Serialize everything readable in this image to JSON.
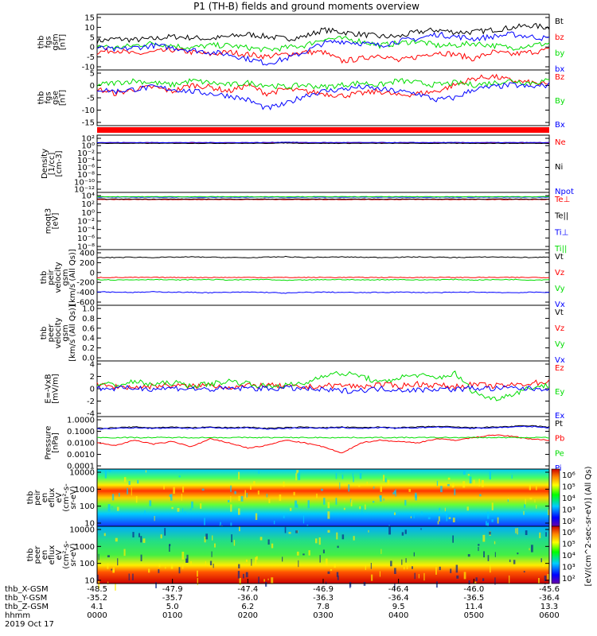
{
  "title": "P1 (TH-B) fields and ground moments overview",
  "colors": {
    "black": "#000000",
    "red": "#ff0000",
    "green": "#00dd00",
    "blue": "#0000ff"
  },
  "chart_data": [
    {
      "type": "line",
      "ylabel": [
        "thb",
        "fgs",
        "gsm",
        "[nT]"
      ],
      "yticks": [
        "15",
        "10",
        "5",
        "0",
        "-5",
        "-10"
      ],
      "ylim": [
        -10,
        15
      ],
      "series": [
        {
          "name": "Bt",
          "color": "black",
          "values": [
            3,
            4,
            3.5,
            4,
            5,
            4.5,
            4,
            5,
            6,
            5,
            4,
            5,
            8,
            7,
            6,
            5,
            5,
            7,
            8,
            7,
            7,
            8,
            9,
            10,
            9
          ]
        },
        {
          "name": "bz",
          "color": "red",
          "values": [
            -2,
            -1,
            -3,
            -2,
            -1,
            -2,
            -3,
            -2,
            -3,
            -4,
            -3,
            -2,
            -2,
            -6,
            -5,
            -3,
            -6,
            -4,
            -2,
            -3,
            -5,
            -2,
            -3,
            -2,
            -1
          ]
        },
        {
          "name": "by",
          "color": "green",
          "values": [
            1,
            0,
            1,
            2,
            1,
            0,
            1,
            1,
            0,
            -1,
            0,
            1,
            4,
            4,
            3,
            1,
            2,
            3,
            1,
            1,
            2,
            1,
            0,
            1,
            2
          ]
        },
        {
          "name": "bx",
          "color": "blue",
          "values": [
            0,
            -1,
            0,
            1,
            0,
            -1,
            -2,
            -3,
            -5,
            -7,
            -5,
            -2,
            2,
            3,
            2,
            1,
            3,
            4,
            6,
            5,
            4,
            5,
            6,
            5,
            4
          ]
        }
      ]
    },
    {
      "type": "line",
      "ylabel": [
        "thb",
        "fgs",
        "gse",
        "[nT]"
      ],
      "yticks": [
        "5",
        "0",
        "-5",
        "-10",
        "-15"
      ],
      "ylim": [
        -18,
        8
      ],
      "series": [
        {
          "name": "Bz",
          "color": "red",
          "values": [
            -1,
            -3,
            -1,
            0,
            -2,
            1,
            0,
            -2,
            1,
            -3,
            -1,
            -2,
            -3,
            -4,
            -3,
            -2,
            -4,
            -3,
            -2,
            1,
            4,
            5,
            3,
            2,
            1
          ]
        },
        {
          "name": "By",
          "color": "green",
          "values": [
            1,
            2,
            3,
            2,
            1,
            3,
            2,
            1,
            2,
            1,
            0,
            1,
            0,
            1,
            2,
            1,
            3,
            2,
            1,
            2,
            1,
            2,
            3,
            2,
            3
          ]
        },
        {
          "name": "Bx",
          "color": "blue",
          "values": [
            -1,
            -2,
            -1,
            0,
            -1,
            -2,
            -3,
            -4,
            -6,
            -10,
            -8,
            -4,
            -2,
            -1,
            0,
            -1,
            -2,
            -3,
            -6,
            -5,
            -1,
            0,
            1,
            0,
            1
          ]
        }
      ]
    },
    {
      "type": "line",
      "log": true,
      "ylabel": [
        "Density",
        "[1/cc]",
        "[cm-3]"
      ],
      "yticks": [
        "10²",
        "10⁰",
        "10⁻²",
        "10⁻⁴",
        "10⁻⁶",
        "10⁻⁸",
        "10⁻¹⁰",
        "10⁻¹²"
      ],
      "ylim": [
        -12,
        2
      ],
      "series": [
        {
          "name": "Ne",
          "color": "red",
          "values": [
            0.1,
            0.1,
            0.1,
            0.1,
            0.1,
            0.1,
            0.1,
            0.1,
            0.1,
            0.1,
            0.2,
            0.1,
            0.1,
            0.1,
            0.1,
            0.1,
            0.1,
            0.1,
            0.1,
            0.1,
            0.1,
            0.1,
            0.1,
            0.1,
            0.1
          ]
        },
        {
          "name": "Ni",
          "color": "black",
          "values": [
            0,
            0,
            0,
            0,
            0,
            0,
            0,
            0,
            0,
            0,
            0.1,
            0,
            0,
            0,
            0,
            0,
            0,
            0,
            0,
            0,
            0,
            0,
            0,
            0,
            0
          ]
        },
        {
          "name": "Npot",
          "color": "blue",
          "values": [
            0.2,
            0.2,
            0.2,
            0.2,
            0.2,
            0.2,
            0.2,
            0.2,
            0.2,
            0.2,
            0.3,
            0.2,
            0.2,
            0.2,
            0.2,
            0.2,
            0.2,
            0.2,
            0.2,
            0.2,
            0.2,
            0.2,
            0.2,
            0.2,
            0.2
          ]
        }
      ]
    },
    {
      "type": "line",
      "log": true,
      "ylabel": [
        "moqt3",
        "[eV]"
      ],
      "yticks": [
        "10⁴",
        "10²",
        "10⁰",
        "10⁻²",
        "10⁻⁴",
        "10⁻⁶",
        "10⁻⁸"
      ],
      "ylim": [
        -8,
        4
      ],
      "series": [
        {
          "name": "Te⊥",
          "color": "red",
          "values": [
            2.5,
            2.5,
            2.5,
            2.5,
            2.5,
            2.5,
            2.5,
            2.5,
            2.5,
            2.5,
            2.5,
            2.5,
            2.5,
            2.5,
            2.5,
            2.5,
            2.5,
            2.5,
            2.5,
            2.5,
            2.5,
            2.5,
            2.5,
            2.5,
            2.5
          ]
        },
        {
          "name": "Te||",
          "color": "black",
          "values": [
            2.6,
            2.6,
            2.6,
            2.6,
            2.6,
            2.6,
            2.6,
            2.6,
            2.6,
            2.6,
            2.6,
            2.6,
            2.6,
            2.6,
            2.6,
            2.6,
            2.6,
            2.6,
            2.6,
            2.6,
            2.6,
            2.6,
            2.6,
            2.6,
            2.6
          ]
        },
        {
          "name": "Ti⊥",
          "color": "blue",
          "values": [
            3.0,
            3.0,
            3.0,
            3.0,
            3.0,
            3.0,
            3.0,
            3.0,
            3.0,
            3.0,
            3.0,
            3.0,
            3.0,
            3.0,
            3.0,
            3.0,
            3.0,
            3.0,
            3.0,
            3.0,
            3.0,
            3.0,
            3.0,
            3.0,
            3.0
          ]
        },
        {
          "name": "Ti||",
          "color": "green",
          "values": [
            3.1,
            3.1,
            3.1,
            3.1,
            3.1,
            3.1,
            3.1,
            3.1,
            3.1,
            3.1,
            3.1,
            3.1,
            3.1,
            3.1,
            3.1,
            3.1,
            3.1,
            3.1,
            3.1,
            3.1,
            3.1,
            3.1,
            3.1,
            3.1,
            3.1
          ]
        }
      ]
    },
    {
      "type": "line",
      "ylabel": [
        "thb",
        "peir",
        "velocity",
        "gsm",
        "[km/s (All Qs)]"
      ],
      "yticks": [
        "400",
        "200",
        "0",
        "-200",
        "-400",
        "-600"
      ],
      "ylim": [
        -600,
        500
      ],
      "series": [
        {
          "name": "Vt",
          "color": "black",
          "values": [
            340,
            345,
            350,
            345,
            350,
            355,
            350,
            345,
            340,
            350,
            360,
            345,
            350,
            355,
            350,
            345,
            350,
            355,
            350,
            345,
            350,
            355,
            350,
            345,
            350
          ]
        },
        {
          "name": "Vz",
          "color": "red",
          "values": [
            -50,
            -50,
            -50,
            -50,
            -50,
            -50,
            -50,
            -50,
            -50,
            -50,
            -50,
            -50,
            -50,
            -50,
            -50,
            -50,
            -50,
            -50,
            -50,
            -50,
            -50,
            -50,
            -50,
            -50,
            -50
          ]
        },
        {
          "name": "Vy",
          "color": "green",
          "values": [
            -90,
            -100,
            -95,
            -90,
            -100,
            -95,
            -90,
            -100,
            -95,
            -90,
            -110,
            -100,
            -95,
            -90,
            -100,
            -95,
            -90,
            -100,
            -95,
            -90,
            -100,
            -95,
            -90,
            -100,
            -95
          ]
        },
        {
          "name": "Vx",
          "color": "blue",
          "values": [
            -330,
            -340,
            -345,
            -335,
            -340,
            -345,
            -350,
            -345,
            -340,
            -345,
            -360,
            -345,
            -340,
            -345,
            -350,
            -345,
            -340,
            -345,
            -350,
            -345,
            -340,
            -345,
            -350,
            -345,
            -340
          ]
        }
      ]
    },
    {
      "type": "line",
      "ylabel": [
        "thb",
        "peer",
        "velocity",
        "gsm",
        "[km/s (All Qs)]"
      ],
      "yticks": [
        "1.0",
        "0.8",
        "0.6",
        "0.4",
        "0.2",
        "0.0"
      ],
      "ylim": [
        0,
        1
      ],
      "series": [
        {
          "name": "Vt",
          "color": "black",
          "values": []
        },
        {
          "name": "Vz",
          "color": "red",
          "values": []
        },
        {
          "name": "Vy",
          "color": "green",
          "values": []
        },
        {
          "name": "Vx",
          "color": "blue",
          "values": []
        }
      ]
    },
    {
      "type": "line",
      "ylabel": [
        "E=-VxB",
        "[mV/m]"
      ],
      "yticks": [
        "4",
        "2",
        "0",
        "-2",
        "-4"
      ],
      "ylim": [
        -4,
        4
      ],
      "series": [
        {
          "name": "Ez",
          "color": "red",
          "values": [
            0.5,
            0.3,
            0.2,
            0.4,
            0.5,
            0.3,
            0.6,
            0.2,
            0.4,
            0.5,
            0.3,
            0.2,
            0.4,
            0.5,
            0.3,
            0.6,
            0.4,
            0.7,
            0.5,
            0.3,
            0.6,
            0.4,
            0.5,
            0.8,
            1.0
          ]
        },
        {
          "name": "Ey",
          "color": "green",
          "values": [
            0.8,
            0.5,
            1.0,
            0.6,
            0.9,
            0.4,
            0.7,
            1.1,
            0.8,
            0.3,
            0.5,
            0.7,
            2.0,
            2.2,
            1.9,
            0.8,
            1.6,
            2.0,
            1.5,
            2.2,
            -0.5,
            -1.5,
            -0.8,
            0.2,
            0.5
          ]
        },
        {
          "name": "Ex",
          "color": "blue",
          "values": [
            0.1,
            0,
            0.1,
            0,
            0.1,
            0,
            -0.1,
            0,
            0.1,
            0,
            0.1,
            0,
            -0.2,
            -0.3,
            -0.2,
            0,
            -0.1,
            -0.2,
            0,
            -0.1,
            0.1,
            0,
            0.1,
            0,
            0.1
          ]
        }
      ]
    },
    {
      "type": "line",
      "log": true,
      "ylabel": [
        "Pressure",
        "[nPa]"
      ],
      "yticks": [
        "1.0000",
        "0.1000",
        "0.0100",
        "0.0010",
        "0.0001"
      ],
      "ylim": [
        -4,
        0
      ],
      "series": [
        {
          "name": "Pt",
          "color": "black",
          "values": [
            -0.9,
            -0.85,
            -0.8,
            -0.85,
            -0.8,
            -0.85,
            -0.8,
            -0.85,
            -0.8,
            -0.9,
            -0.85,
            -0.8,
            -0.85,
            -0.8,
            -0.85,
            -0.8,
            -0.85,
            -0.8,
            -0.75,
            -0.8,
            -0.85,
            -0.8,
            -0.75,
            -0.7,
            -0.8
          ]
        },
        {
          "name": "Pb",
          "color": "red",
          "values": [
            -2.0,
            -2.2,
            -1.8,
            -2.1,
            -1.9,
            -2.3,
            -1.7,
            -2.0,
            -2.4,
            -2.2,
            -1.8,
            -2.0,
            -2.3,
            -2.8,
            -2.0,
            -1.8,
            -1.9,
            -2.0,
            -1.7,
            -1.8,
            -1.6,
            -1.4,
            -1.5,
            -1.7,
            -1.8
          ]
        },
        {
          "name": "Pe",
          "color": "green",
          "values": [
            -1.6,
            -1.6,
            -1.6,
            -1.6,
            -1.6,
            -1.6,
            -1.6,
            -1.6,
            -1.6,
            -1.6,
            -1.6,
            -1.6,
            -1.6,
            -1.6,
            -1.6,
            -1.6,
            -1.6,
            -1.6,
            -1.6,
            -1.6,
            -1.6,
            -1.6,
            -1.6,
            -1.6,
            -1.6
          ]
        },
        {
          "name": "Pi",
          "color": "blue",
          "values": [
            -0.95,
            -0.9,
            -0.85,
            -0.9,
            -0.85,
            -0.9,
            -0.85,
            -0.9,
            -0.85,
            -0.95,
            -0.9,
            -0.85,
            -0.9,
            -0.85,
            -0.9,
            -0.85,
            -0.9,
            -0.85,
            -0.8,
            -0.85,
            -0.9,
            -0.85,
            -0.8,
            -0.75,
            -0.85
          ]
        }
      ]
    },
    {
      "type": "heatmap",
      "ylabel": [
        "thb",
        "peir",
        "en",
        "eflux",
        "eV",
        "(cm²-s-",
        "sr-eV)"
      ],
      "yticks": [
        "10000",
        "1000",
        "100",
        "10"
      ],
      "colorbar_ticks": [
        "10⁶",
        "10⁵",
        "10⁴",
        "10³",
        "10²"
      ],
      "colorbar_label": "[eV/(cm^2-sec-sr-eV)] (All Qs)"
    },
    {
      "type": "heatmap",
      "ylabel": [
        "thb",
        "peer",
        "en",
        "eflux",
        "eV",
        "(cm²-s-",
        "sr-eV)"
      ],
      "yticks": [
        "10000",
        "1000",
        "100",
        "10"
      ],
      "colorbar_ticks": [
        "10⁶",
        "10⁵",
        "10⁴",
        "10³",
        "10²"
      ],
      "colorbar_label": "[eV/(cm^2-sec-sr-eV)] (All Qs)"
    }
  ],
  "ephemeris": {
    "rows": [
      {
        "label": "thb_X-GSM",
        "values": [
          "-48.5",
          "-47.9",
          "-47.4",
          "-46.9",
          "-46.4",
          "-46.0",
          "-45.6"
        ]
      },
      {
        "label": "thb_Y-GSM",
        "values": [
          "-35.2",
          "-35.7",
          "-36.0",
          "-36.3",
          "-36.4",
          "-36.5",
          "-36.4"
        ]
      },
      {
        "label": "thb_Z-GSM",
        "values": [
          "4.1",
          "5.0",
          "6.2",
          "7.8",
          "9.5",
          "11.4",
          "13.3"
        ]
      },
      {
        "label": "hhmm",
        "values": [
          "0000",
          "0100",
          "0200",
          "0300",
          "0400",
          "0500",
          "0600"
        ]
      }
    ],
    "date": "2019 Oct 17"
  }
}
